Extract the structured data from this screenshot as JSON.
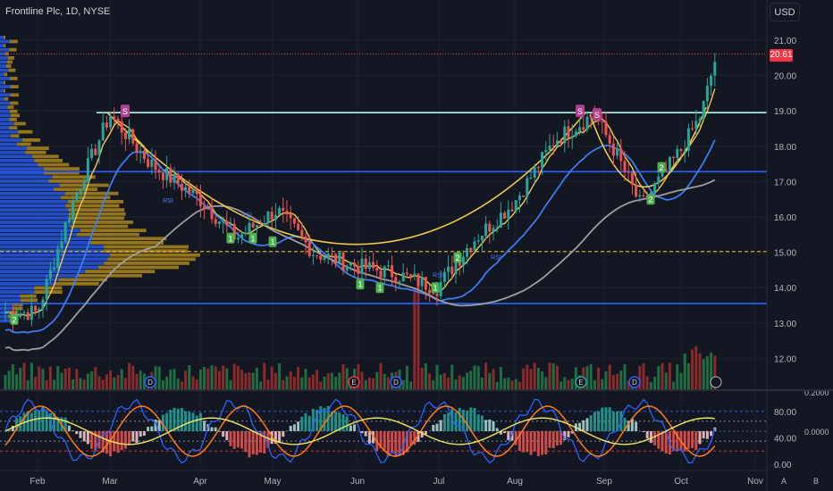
{
  "header": {
    "symbol_text": "Frontline Plc, 1D, NYSE",
    "currency": "USD"
  },
  "last_price": "20.61",
  "colors": {
    "background": "#131722",
    "up": "#26a69a",
    "down": "#ef5350",
    "ma_fast": "#f2c94c",
    "ma_mid": "#3d7bf2",
    "ma_slow": "#9e9e9e",
    "hline_blue": "#2962ff",
    "hline_cyan": "#b2f5ea",
    "hline_dash": "#f5c518",
    "osc_blue": "#2962ff",
    "osc_orange": "#ff7a1a",
    "osc_yellow": "#f5e663"
  },
  "chart_data": [
    {
      "type": "candlestick",
      "title": "Frontline Plc, 1D, NYSE",
      "ylim": [
        11.3,
        21.6
      ],
      "y_ticks": [
        "21.00",
        "20.00",
        "19.00",
        "18.00",
        "17.00",
        "16.00",
        "15.00",
        "14.00",
        "13.00",
        "12.00"
      ],
      "x_ticks": [
        "Feb",
        "Mar",
        "Apr",
        "May",
        "Jun",
        "Jul",
        "Aug",
        "Sep",
        "Oct",
        "Nov"
      ],
      "close_key_points": {
        "x": [
          "Feb 1",
          "Feb 15",
          "Mar 1",
          "Mar 15",
          "Apr 1",
          "Apr 15",
          "May 1",
          "May 15",
          "Jun 1",
          "Jun 15",
          "Jul 1",
          "Jul 15",
          "Aug 1",
          "Aug 15",
          "Aug 28",
          "Sep 5",
          "Sep 15",
          "Oct 1",
          "Oct 9",
          "Oct 15"
        ],
        "y": [
          13.3,
          16.5,
          18.9,
          17.5,
          16.5,
          15.4,
          16.2,
          15.0,
          14.6,
          14.4,
          14.0,
          15.3,
          16.4,
          18.2,
          18.9,
          17.8,
          16.3,
          17.9,
          18.9,
          20.61
        ]
      },
      "horizontal_levels": [
        {
          "value": 18.95,
          "style": "solid",
          "color": "#b2f5ea"
        },
        {
          "value": 17.28,
          "style": "solid",
          "color": "#2962ff"
        },
        {
          "value": 15.02,
          "style": "dashed",
          "color": "#f5c518"
        },
        {
          "value": 13.55,
          "style": "solid",
          "color": "#2962ff"
        }
      ],
      "markers": [
        "RSI",
        "RSI",
        "RSI",
        "RSI",
        "1",
        "1",
        "1",
        "1",
        "1",
        "1",
        "2",
        "2",
        "S",
        "S",
        "D",
        "D",
        "E",
        "E",
        "D",
        "E",
        "D"
      ],
      "events": [
        "D",
        "E",
        "D",
        "E",
        "D"
      ]
    },
    {
      "type": "line",
      "title": "",
      "ylim": [
        0,
        100
      ],
      "y_ticks": [
        "80.00",
        "40.00",
        "0.00"
      ],
      "right_ticks": [
        "0.2000",
        "0.0000"
      ]
    }
  ]
}
